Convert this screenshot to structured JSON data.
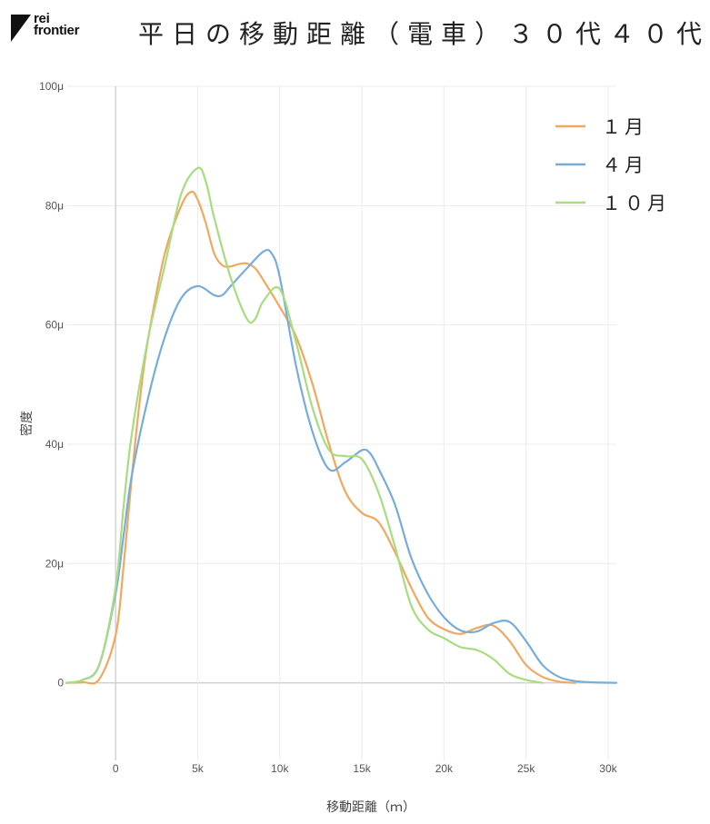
{
  "logo": {
    "line1": "rei",
    "line2": "frontier"
  },
  "title": "平日の移動距離（電車）３０代４０代",
  "chart_data": {
    "type": "line",
    "xlabel": "移動距離（ｍ）",
    "ylabel": "密度",
    "xlim": [
      -3000,
      30500
    ],
    "ylim": [
      -13,
      100
    ],
    "x_ticks": [
      {
        "value": 0,
        "label": "0"
      },
      {
        "value": 5000,
        "label": "5k"
      },
      {
        "value": 10000,
        "label": "10k"
      },
      {
        "value": 15000,
        "label": "15k"
      },
      {
        "value": 20000,
        "label": "20k"
      },
      {
        "value": 25000,
        "label": "25k"
      },
      {
        "value": 30000,
        "label": "30k"
      }
    ],
    "y_ticks": [
      {
        "value": 0,
        "label": "0"
      },
      {
        "value": 20,
        "label": "20μ"
      },
      {
        "value": 40,
        "label": "40μ"
      },
      {
        "value": 60,
        "label": "60μ"
      },
      {
        "value": 80,
        "label": "80μ"
      },
      {
        "value": 100,
        "label": "100μ"
      }
    ],
    "grid": true,
    "legend_position": "top-right",
    "series": [
      {
        "name": "１月",
        "color": "#f0a860",
        "points": [
          [
            -3000,
            0
          ],
          [
            -2000,
            0.1
          ],
          [
            -1000,
            0.6
          ],
          [
            0,
            8
          ],
          [
            500,
            20
          ],
          [
            1000,
            35
          ],
          [
            1500,
            48
          ],
          [
            2000,
            58
          ],
          [
            3000,
            72
          ],
          [
            4000,
            80
          ],
          [
            4600,
            82.3
          ],
          [
            5000,
            81
          ],
          [
            5500,
            77
          ],
          [
            6000,
            72
          ],
          [
            6500,
            70
          ],
          [
            7000,
            69.8
          ],
          [
            7500,
            70.2
          ],
          [
            8000,
            70.3
          ],
          [
            8500,
            69.5
          ],
          [
            9000,
            67.5
          ],
          [
            10000,
            63
          ],
          [
            11000,
            58
          ],
          [
            12000,
            50
          ],
          [
            13000,
            40
          ],
          [
            14000,
            32
          ],
          [
            15000,
            28.5
          ],
          [
            16000,
            27
          ],
          [
            17000,
            22
          ],
          [
            18000,
            16
          ],
          [
            19000,
            11
          ],
          [
            20000,
            9
          ],
          [
            21000,
            8.2
          ],
          [
            22000,
            9.2
          ],
          [
            23000,
            9.6
          ],
          [
            24000,
            7
          ],
          [
            25000,
            3
          ],
          [
            26000,
            1
          ],
          [
            27000,
            0.2
          ],
          [
            28000,
            0
          ]
        ]
      },
      {
        "name": "４月",
        "color": "#78acd9",
        "points": [
          [
            -3000,
            0
          ],
          [
            -2000,
            0.5
          ],
          [
            -1000,
            3
          ],
          [
            0,
            15
          ],
          [
            500,
            25
          ],
          [
            1000,
            35
          ],
          [
            2000,
            48
          ],
          [
            3000,
            58
          ],
          [
            4000,
            64.5
          ],
          [
            5000,
            66.5
          ],
          [
            6000,
            65
          ],
          [
            6500,
            65
          ],
          [
            7000,
            66.5
          ],
          [
            8000,
            69.5
          ],
          [
            9000,
            72.3
          ],
          [
            9500,
            72
          ],
          [
            10000,
            68
          ],
          [
            11000,
            53
          ],
          [
            12000,
            42
          ],
          [
            13000,
            35.8
          ],
          [
            14000,
            37
          ],
          [
            15000,
            39
          ],
          [
            15500,
            38.5
          ],
          [
            16000,
            36
          ],
          [
            17000,
            30
          ],
          [
            18000,
            21
          ],
          [
            19000,
            15
          ],
          [
            20000,
            11
          ],
          [
            21000,
            8.8
          ],
          [
            22000,
            8.6
          ],
          [
            23000,
            10
          ],
          [
            24000,
            10.2
          ],
          [
            25000,
            7
          ],
          [
            26000,
            3
          ],
          [
            27000,
            1
          ],
          [
            28000,
            0.3
          ],
          [
            29000,
            0.1
          ],
          [
            30500,
            0
          ]
        ]
      },
      {
        "name": "１０月",
        "color": "#a8dc80",
        "points": [
          [
            -3000,
            0
          ],
          [
            -2000,
            0.5
          ],
          [
            -1000,
            3
          ],
          [
            0,
            16
          ],
          [
            500,
            30
          ],
          [
            1000,
            42
          ],
          [
            2000,
            58
          ],
          [
            3000,
            70
          ],
          [
            4000,
            82
          ],
          [
            5000,
            86.3
          ],
          [
            5500,
            84
          ],
          [
            6000,
            78
          ],
          [
            7000,
            68
          ],
          [
            8000,
            61
          ],
          [
            8500,
            61
          ],
          [
            9000,
            64
          ],
          [
            10000,
            66
          ],
          [
            11000,
            57
          ],
          [
            12000,
            46
          ],
          [
            13000,
            39
          ],
          [
            14000,
            38
          ],
          [
            15000,
            37.5
          ],
          [
            16000,
            32
          ],
          [
            17000,
            23
          ],
          [
            18000,
            13
          ],
          [
            19000,
            9
          ],
          [
            20000,
            7.5
          ],
          [
            21000,
            6
          ],
          [
            22000,
            5.5
          ],
          [
            23000,
            4
          ],
          [
            24000,
            1.5
          ],
          [
            25000,
            0.5
          ],
          [
            26000,
            0
          ]
        ]
      }
    ]
  }
}
